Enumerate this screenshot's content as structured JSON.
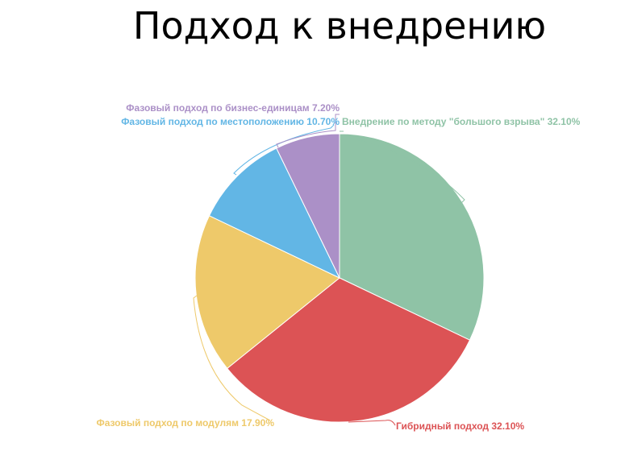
{
  "chart_data": {
    "type": "pie",
    "title": "Подход к внедрению",
    "slices": [
      {
        "label": "Внедрение по методу \"большого взрыва\"",
        "value": 32.1,
        "value_label": "32.10%",
        "color": "#8fc3a6"
      },
      {
        "label": "Гибридный подход",
        "value": 32.1,
        "value_label": "32.10%",
        "color": "#dc5355"
      },
      {
        "label": "Фазовый подход по модулям",
        "value": 17.9,
        "value_label": "17.90%",
        "color": "#eec96a"
      },
      {
        "label": "Фазовый подход по местоположению",
        "value": 10.7,
        "value_label": "10.70%",
        "color": "#62b6e5"
      },
      {
        "label": "Фазовый подход по бизнес-единицам",
        "value": 7.2,
        "value_label": "7.20%",
        "color": "#ab90c7"
      }
    ]
  }
}
